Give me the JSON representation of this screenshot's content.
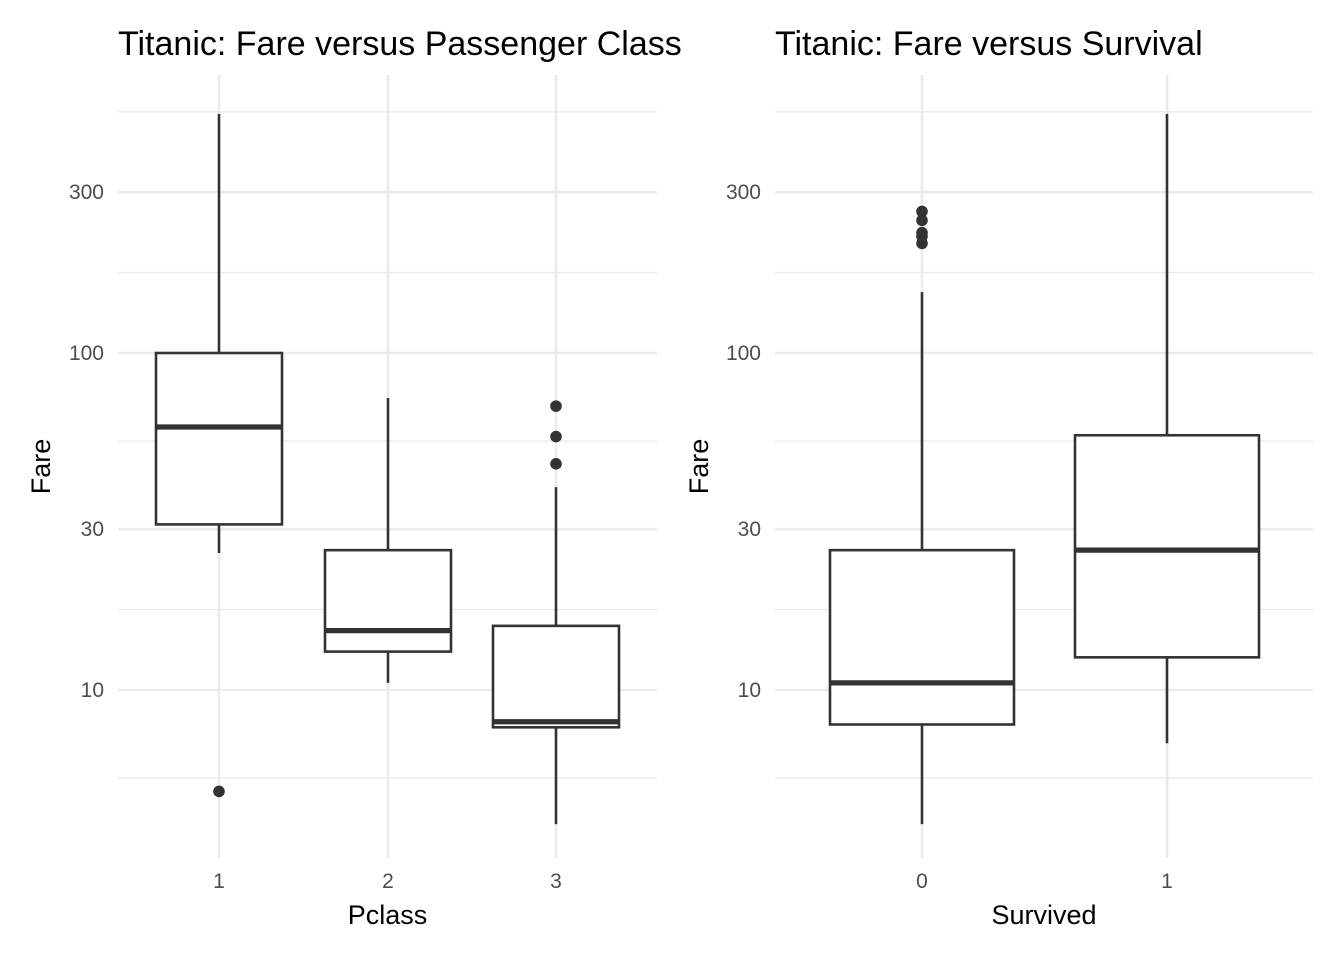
{
  "chart_data": [
    {
      "type": "box",
      "title": "Titanic: Fare versus Passenger Class",
      "xlabel": "Pclass",
      "ylabel": "Fare",
      "y_scale": "log10",
      "y_ticks": [
        10,
        30,
        100,
        300
      ],
      "ylim": [
        3.2,
        580
      ],
      "grid": true,
      "categories": [
        "1",
        "2",
        "3"
      ],
      "boxes": [
        {
          "category": "1",
          "whisker_low": 25.5,
          "q1": 31.0,
          "median": 60.3,
          "q3": 100.0,
          "whisker_high": 512.3,
          "outliers": [
            5.0
          ]
        },
        {
          "category": "2",
          "whisker_low": 10.5,
          "q1": 13.0,
          "median": 15.0,
          "q3": 26.0,
          "whisker_high": 73.5,
          "outliers": []
        },
        {
          "category": "3",
          "whisker_low": 4.0,
          "q1": 7.75,
          "median": 8.05,
          "q3": 15.5,
          "whisker_high": 40.0,
          "outliers": [
            69.55,
            56.5,
            46.9
          ]
        }
      ]
    },
    {
      "type": "box",
      "title": "Titanic: Fare versus Survival",
      "xlabel": "Survived",
      "ylabel": "Fare",
      "y_scale": "log10",
      "y_ticks": [
        10,
        30,
        100,
        300
      ],
      "ylim": [
        3.2,
        580
      ],
      "grid": true,
      "categories": [
        "0",
        "1"
      ],
      "boxes": [
        {
          "category": "0",
          "whisker_low": 4.0,
          "q1": 7.9,
          "median": 10.5,
          "q3": 26.0,
          "whisker_high": 151.55,
          "outliers": [
            263.0,
            247.5,
            227.5,
            221.8,
            211.5
          ]
        },
        {
          "category": "1",
          "whisker_low": 6.95,
          "q1": 12.5,
          "median": 26.0,
          "q3": 57.0,
          "whisker_high": 512.3,
          "outliers": []
        }
      ]
    }
  ]
}
